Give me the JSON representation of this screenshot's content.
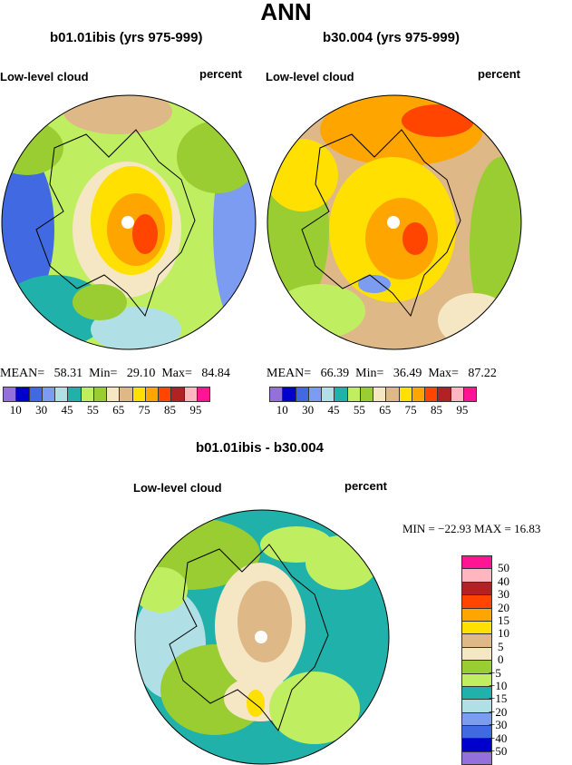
{
  "title": "ANN",
  "colors": [
    "#9370DB",
    "#0000CD",
    "#4169E1",
    "#7B9CF0",
    "#B0E0E6",
    "#20B2AA",
    "#BFEF60",
    "#9ACD32",
    "#F5E6C4",
    "#DEB887",
    "#FFE000",
    "#FFA500",
    "#FF4500",
    "#B22222",
    "#FFB6C1",
    "#FF1493"
  ],
  "panels": [
    {
      "subtitle": "b01.01ibis (yrs 975-999)",
      "variable": "Low-level cloud",
      "units": "percent",
      "mean_label": "MEAN=",
      "mean": "58.31",
      "min_label": "Min=",
      "min": "29.10",
      "max_label": "Max=",
      "max": "84.84"
    },
    {
      "subtitle": "b30.004 (yrs 975-999)",
      "variable": "Low-level cloud",
      "units": "percent",
      "mean_label": "MEAN=",
      "mean": "66.39",
      "min_label": "Min=",
      "min": "36.49",
      "max_label": "Max=",
      "max": "87.22"
    }
  ],
  "colorbar_labels": [
    "10",
    "30",
    "45",
    "55",
    "65",
    "75",
    "85",
    "95"
  ],
  "diff": {
    "subtitle": "b01.01ibis - b30.004",
    "variable": "Low-level cloud",
    "units": "percent",
    "stats": "MIN = −22.93 MAX =  16.83",
    "colorbar_labels": [
      "50",
      "40",
      "30",
      "20",
      "15",
      "10",
      "5",
      "0",
      "−5",
      "−10",
      "−15",
      "−20",
      "−30",
      "−40",
      "−50"
    ]
  }
}
